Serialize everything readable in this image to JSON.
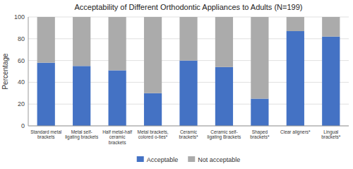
{
  "chart_data": {
    "type": "bar",
    "stacked": true,
    "title": "Acceptability of Different Orthodontic Appliances to Adults (N=199)",
    "y_label": "Percentage",
    "categories": [
      "Standard metal\nbrackets",
      "Metal self-\nligating brackets",
      "Half metal-half\nceramic\nbrackets",
      "Metal brackets,\ncolored o-ties*",
      "Ceramic\nbrackets*",
      "Ceramic self-\nligating Brackets",
      "Shaped\nbrackets*",
      "Clear aligners*",
      "Lingual\nbrackets*"
    ],
    "series": [
      {
        "name": "Acceptable",
        "color": "#4472C4",
        "values": [
          58,
          55,
          51,
          30,
          60,
          54,
          25,
          87,
          82
        ]
      },
      {
        "name": "Not acceptable",
        "color": "#ABABAB",
        "values": [
          42,
          45,
          49,
          70,
          40,
          46,
          75,
          13,
          18
        ]
      }
    ],
    "ylim": [
      0,
      100
    ],
    "yticks": [
      0,
      20,
      40,
      60,
      80,
      100
    ],
    "grid": true,
    "legend": "bottom"
  }
}
